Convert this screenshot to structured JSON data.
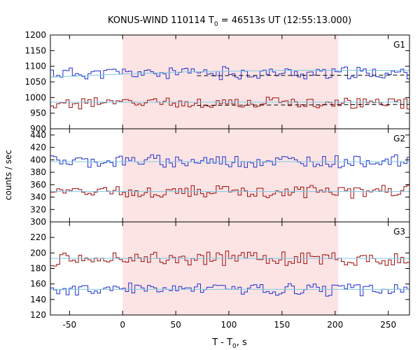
{
  "chart_data": {
    "type": "line",
    "title": "KONUS-WIND 110114 T",
    "title_sub": "0",
    "title_rest": " = 46513s UT (12:55:13.000)",
    "xlabel": "T - T",
    "xlabel_sub": "0",
    "xlabel_rest": ", s",
    "ylabel": "counts / sec",
    "xlim": [
      -68,
      270
    ],
    "xticks": [
      -50,
      0,
      50,
      100,
      150,
      200,
      250
    ],
    "highlight": {
      "x0": 0,
      "x1": 203,
      "color": "#fce4e4"
    },
    "colors": {
      "high": "#1f2fcc",
      "low": "#9e0b0b",
      "fit": "#7ec8e6"
    },
    "panels": [
      {
        "name": "G1",
        "ylim": [
          900,
          1200
        ],
        "yticks": [
          900,
          950,
          1000,
          1050,
          1100,
          1150,
          1200
        ],
        "series": [
          {
            "role": "high",
            "base": 1078,
            "amp": 18,
            "seed": 11,
            "bg": [
              [
                -68,
                1065
              ],
              [
                0,
                1075
              ],
              [
                60,
                1082
              ],
              [
                150,
                1087
              ],
              [
                270,
                1087
              ]
            ],
            "bg_dashed": [
              [
                70,
                1070
              ],
              [
                270,
                1072
              ]
            ]
          },
          {
            "role": "low",
            "base": 982,
            "amp": 16,
            "seed": 27,
            "bg": [
              [
                -68,
                985
              ],
              [
                270,
                985
              ]
            ],
            "bg_dashed": [
              [
                70,
                975
              ],
              [
                270,
                978
              ]
            ]
          }
        ]
      },
      {
        "name": "G2",
        "ylim": [
          300,
          450
        ],
        "yticks": [
          300,
          320,
          340,
          360,
          380,
          400,
          420,
          440
        ],
        "series": [
          {
            "role": "high",
            "base": 398,
            "amp": 9,
            "seed": 43,
            "bg": [
              [
                -68,
                397
              ],
              [
                270,
                397
              ]
            ]
          },
          {
            "role": "low",
            "base": 349,
            "amp": 9,
            "seed": 59,
            "bg": [
              [
                -68,
                349
              ],
              [
                270,
                349
              ]
            ]
          }
        ]
      },
      {
        "name": "G3",
        "ylim": [
          120,
          240
        ],
        "yticks": [
          120,
          140,
          160,
          180,
          200,
          220
        ],
        "series": [
          {
            "role": "low",
            "base": 193,
            "amp": 8,
            "seed": 71,
            "bg": [
              [
                -68,
                193
              ],
              [
                270,
                193
              ]
            ]
          },
          {
            "role": "high",
            "base": 153,
            "amp": 7,
            "seed": 89,
            "bg": [
              [
                -68,
                153
              ],
              [
                270,
                153
              ]
            ]
          }
        ]
      }
    ]
  }
}
